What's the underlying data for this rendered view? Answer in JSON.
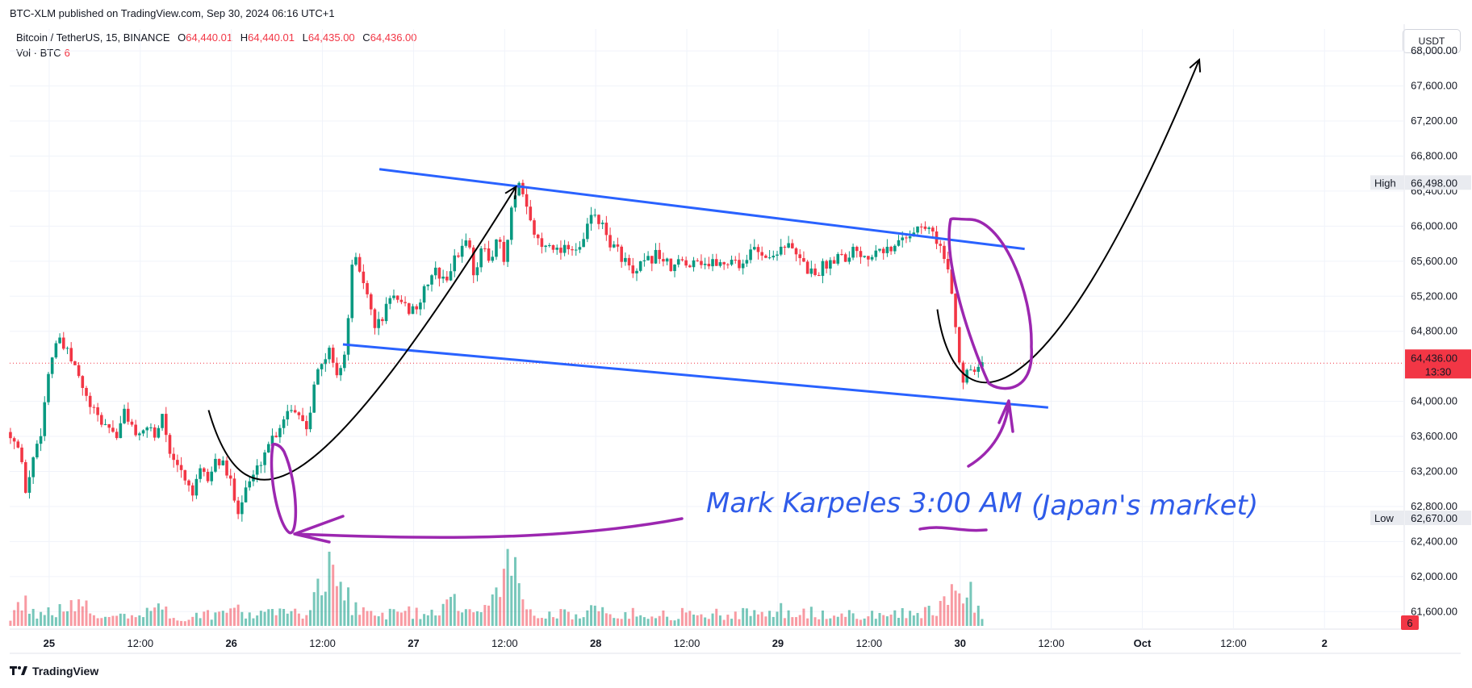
{
  "header": {
    "published": "BTC-XLM published on TradingView.com, Sep 30, 2024 06:16 UTC+1"
  },
  "legend": {
    "symbol": "Bitcoin / TetherUS, 15, BINANCE",
    "open_label": "O",
    "open": "64,440.01",
    "high_label": "H",
    "high": "64,440.01",
    "low_label": "L",
    "low": "64,435.00",
    "close_label": "C",
    "close": "64,436.00",
    "volume_label": "Vol · BTC",
    "volume_value": "6"
  },
  "currency_button": "USDT",
  "footer": {
    "brand": "TradingView"
  },
  "colors": {
    "up": "#089981",
    "down": "#f23645",
    "channel": "#2962ff",
    "annotation": "#9c27b0",
    "note": "#2f5be9"
  },
  "annotations": {
    "text_main": "Mark Karpeles  3:00 AM",
    "text_paren": "(Japan's market)"
  },
  "chart_data": {
    "type": "candlestick",
    "interval": "15",
    "y_axis": {
      "ticks": [
        "68,000.00",
        "67,600.00",
        "67,200.00",
        "66,800.00",
        "66,400.00",
        "66,000.00",
        "65,600.00",
        "65,200.00",
        "64,800.00",
        "64,000.00",
        "63,600.00",
        "63,200.00",
        "62,800.00",
        "62,400.00",
        "62,000.00",
        "61,600.00"
      ],
      "tick_values": [
        68000,
        67600,
        67200,
        66800,
        66400,
        66000,
        65600,
        65200,
        64800,
        64000,
        63600,
        63200,
        62800,
        62400,
        62000,
        61600
      ],
      "ylim": [
        61400,
        68250
      ]
    },
    "x_axis": {
      "ticks": [
        "25",
        "12:00",
        "26",
        "12:00",
        "27",
        "12:00",
        "28",
        "12:00",
        "29",
        "12:00",
        "30",
        "12:00",
        "Oct",
        "12:00",
        "2"
      ],
      "tick_hours": [
        0,
        12,
        24,
        36,
        48,
        60,
        72,
        84,
        96,
        108,
        120,
        132,
        144,
        156,
        168
      ],
      "xlim_hours": [
        -5.2,
        178.5
      ],
      "bold_ticks": [
        "25",
        "26",
        "27",
        "28",
        "29",
        "30",
        "Oct",
        "2"
      ]
    },
    "price_labels": {
      "high": {
        "label": "High",
        "value": "66,498.00",
        "price": 66498
      },
      "low": {
        "label": "Low",
        "value": "62,670.00",
        "price": 62670
      },
      "last": {
        "value": "64,436.00",
        "price": 64436,
        "countdown": "13:30"
      },
      "volume": {
        "value": "6"
      }
    },
    "price_path": [
      [
        -5.1,
        63650
      ],
      [
        -4,
        63450
      ],
      [
        -3,
        62950
      ],
      [
        -2,
        63400
      ],
      [
        -1,
        63700
      ],
      [
        0,
        64400
      ],
      [
        1,
        64700
      ],
      [
        2,
        64600
      ],
      [
        3,
        64450
      ],
      [
        4,
        64250
      ],
      [
        5,
        64000
      ],
      [
        6,
        63850
      ],
      [
        7,
        63750
      ],
      [
        8,
        63700
      ],
      [
        9,
        63600
      ],
      [
        10,
        63900
      ],
      [
        11,
        63700
      ],
      [
        12,
        63550
      ],
      [
        13,
        63750
      ],
      [
        14,
        63600
      ],
      [
        15,
        63900
      ],
      [
        16,
        63300
      ],
      [
        17,
        63250
      ],
      [
        18,
        63100
      ],
      [
        19,
        62950
      ],
      [
        20,
        63200
      ],
      [
        21,
        63100
      ],
      [
        22,
        63350
      ],
      [
        23,
        63250
      ],
      [
        24,
        63050
      ],
      [
        25,
        62750
      ],
      [
        26,
        63050
      ],
      [
        27,
        63150
      ],
      [
        28,
        63350
      ],
      [
        29,
        63550
      ],
      [
        30,
        63650
      ],
      [
        31,
        63850
      ],
      [
        32,
        63950
      ],
      [
        33,
        63850
      ],
      [
        34,
        63700
      ],
      [
        35,
        64300
      ],
      [
        36,
        64400
      ],
      [
        37,
        64600
      ],
      [
        38,
        64300
      ],
      [
        39,
        64500
      ],
      [
        39.8,
        65500
      ],
      [
        40.5,
        65600
      ],
      [
        41.5,
        65350
      ],
      [
        42,
        65150
      ],
      [
        43,
        64850
      ],
      [
        44,
        64950
      ],
      [
        45,
        65250
      ],
      [
        46,
        65100
      ],
      [
        47,
        65050
      ],
      [
        48,
        65050
      ],
      [
        49,
        65150
      ],
      [
        50,
        65400
      ],
      [
        51,
        65500
      ],
      [
        52,
        65350
      ],
      [
        53,
        65550
      ],
      [
        54,
        65700
      ],
      [
        55,
        65900
      ],
      [
        56,
        65450
      ],
      [
        57,
        65750
      ],
      [
        58,
        65600
      ],
      [
        59,
        65900
      ],
      [
        60,
        65550
      ],
      [
        61,
        66250
      ],
      [
        62,
        66450
      ],
      [
        63,
        66150
      ],
      [
        64,
        65900
      ],
      [
        65,
        65750
      ],
      [
        66,
        65850
      ],
      [
        67,
        65700
      ],
      [
        68,
        65800
      ],
      [
        69,
        65750
      ],
      [
        70,
        65700
      ],
      [
        71,
        66050
      ],
      [
        72,
        66150
      ],
      [
        73,
        65950
      ],
      [
        74,
        65800
      ],
      [
        75,
        65700
      ],
      [
        76,
        65600
      ],
      [
        77,
        65400
      ],
      [
        78,
        65550
      ],
      [
        79,
        65600
      ],
      [
        80,
        65700
      ],
      [
        81,
        65600
      ],
      [
        82,
        65500
      ],
      [
        83,
        65600
      ],
      [
        84,
        65550
      ],
      [
        85,
        65650
      ],
      [
        86,
        65600
      ],
      [
        87,
        65550
      ],
      [
        88,
        65600
      ],
      [
        89,
        65550
      ],
      [
        90,
        65650
      ],
      [
        91,
        65550
      ],
      [
        92,
        65650
      ],
      [
        93,
        65750
      ],
      [
        94,
        65700
      ],
      [
        95,
        65600
      ],
      [
        96,
        65750
      ],
      [
        97,
        65800
      ],
      [
        98,
        65700
      ],
      [
        99,
        65600
      ],
      [
        100,
        65500
      ],
      [
        101,
        65450
      ],
      [
        102,
        65550
      ],
      [
        103,
        65600
      ],
      [
        104,
        65700
      ],
      [
        105,
        65650
      ],
      [
        106,
        65750
      ],
      [
        107,
        65700
      ],
      [
        108,
        65650
      ],
      [
        109,
        65800
      ],
      [
        110,
        65750
      ],
      [
        111,
        65700
      ],
      [
        112,
        65850
      ],
      [
        113,
        65900
      ],
      [
        114,
        65950
      ],
      [
        115,
        66000
      ],
      [
        116,
        65950
      ],
      [
        117,
        65850
      ],
      [
        118,
        65600
      ],
      [
        119,
        65200
      ],
      [
        119.6,
        64700
      ],
      [
        120,
        64350
      ],
      [
        120.6,
        64200
      ],
      [
        121,
        64450
      ],
      [
        121.5,
        64350
      ],
      [
        122.2,
        64450
      ],
      [
        122.9,
        64436
      ]
    ],
    "volume_path": [
      [
        -5,
        4
      ],
      [
        -3,
        7
      ],
      [
        -1,
        3
      ],
      [
        0,
        5
      ],
      [
        2,
        4
      ],
      [
        4,
        8
      ],
      [
        6,
        2
      ],
      [
        8,
        3
      ],
      [
        10,
        4
      ],
      [
        12,
        3
      ],
      [
        14,
        6
      ],
      [
        16,
        3
      ],
      [
        18,
        2
      ],
      [
        20,
        4
      ],
      [
        22,
        3
      ],
      [
        24,
        5
      ],
      [
        26,
        4
      ],
      [
        28,
        3
      ],
      [
        30,
        4
      ],
      [
        32,
        5
      ],
      [
        34,
        3
      ],
      [
        35,
        14
      ],
      [
        36,
        8
      ],
      [
        37,
        20
      ],
      [
        38,
        11
      ],
      [
        39,
        9
      ],
      [
        40,
        6
      ],
      [
        42,
        4
      ],
      [
        44,
        3
      ],
      [
        46,
        5
      ],
      [
        48,
        4
      ],
      [
        50,
        3
      ],
      [
        52,
        5
      ],
      [
        54,
        7
      ],
      [
        56,
        4
      ],
      [
        58,
        5
      ],
      [
        60,
        14
      ],
      [
        61,
        22
      ],
      [
        62,
        9
      ],
      [
        64,
        4
      ],
      [
        66,
        3
      ],
      [
        68,
        4
      ],
      [
        70,
        3
      ],
      [
        72,
        5
      ],
      [
        74,
        3
      ],
      [
        76,
        4
      ],
      [
        78,
        3
      ],
      [
        80,
        4
      ],
      [
        82,
        3
      ],
      [
        84,
        4
      ],
      [
        86,
        3
      ],
      [
        88,
        4
      ],
      [
        90,
        3
      ],
      [
        92,
        4
      ],
      [
        94,
        3
      ],
      [
        96,
        5
      ],
      [
        98,
        3
      ],
      [
        100,
        4
      ],
      [
        102,
        3
      ],
      [
        104,
        4
      ],
      [
        106,
        3
      ],
      [
        108,
        4
      ],
      [
        110,
        3
      ],
      [
        112,
        4
      ],
      [
        114,
        5
      ],
      [
        116,
        4
      ],
      [
        118,
        8
      ],
      [
        119.5,
        15
      ],
      [
        120,
        10
      ],
      [
        121,
        12
      ],
      [
        122,
        6
      ],
      [
        122.9,
        2
      ]
    ],
    "channel": {
      "upper": [
        [
          43.5,
          66650
        ],
        [
          128.5,
          65740
        ]
      ],
      "lower": [
        [
          38.7,
          64650
        ],
        [
          131.6,
          63930
        ]
      ]
    },
    "arrows": [
      {
        "from": [
          21,
          63900
        ],
        "ctrl1": [
          26,
          62400
        ],
        "ctrl2": [
          36,
          62900
        ],
        "to": [
          61.5,
          66450
        ]
      },
      {
        "from": [
          117,
          65050
        ],
        "ctrl1": [
          119,
          63800
        ],
        "ctrl2": [
          130,
          63400
        ],
        "to": [
          151.5,
          67900
        ]
      }
    ]
  }
}
